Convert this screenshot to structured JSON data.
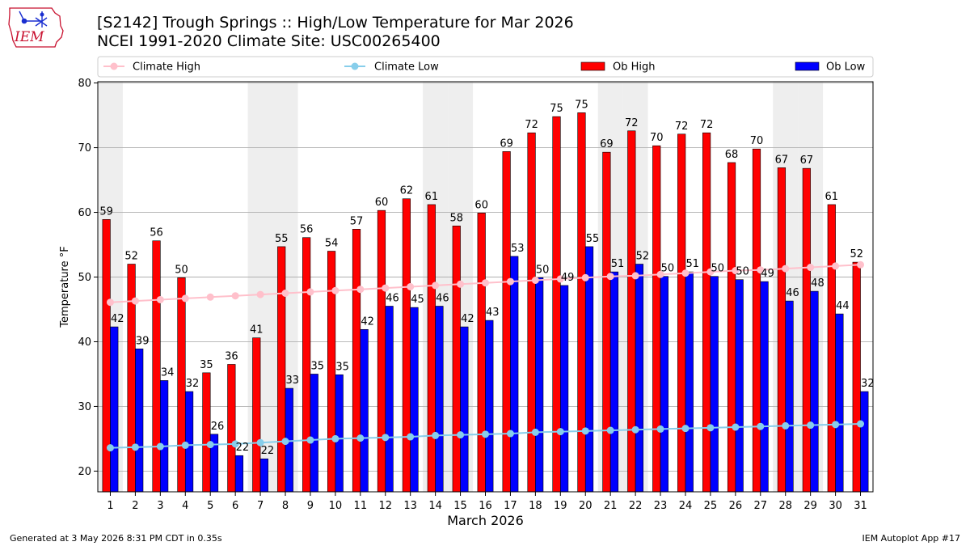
{
  "header": {
    "logo_text": "IEM",
    "title_line1": "[S2142] Trough Springs :: High/Low Temperature for Mar 2026",
    "title_line2": "NCEI 1991-2020 Climate Site: USC00265400"
  },
  "footer": {
    "left": "Generated at 3 May 2026 8:31 PM CDT in 0.35s",
    "right": "IEM Autoplot App #17"
  },
  "colors": {
    "ob_high": "#ff0000",
    "ob_low": "#0000ff",
    "climate_high": "#ffc0cb",
    "climate_low": "#87ceeb",
    "weekend_band": "#eeeeee",
    "grid": "#b0b0b0"
  },
  "chart_data": {
    "type": "bar",
    "xlabel": "March 2026",
    "ylabel": "Temperature °F",
    "ylim": [
      16.8,
      80.2
    ],
    "yticks": [
      20,
      30,
      40,
      50,
      60,
      70,
      80
    ],
    "grid": "horizontal",
    "legend_position": "top",
    "categories": [
      "1",
      "2",
      "3",
      "4",
      "5",
      "6",
      "7",
      "8",
      "9",
      "10",
      "11",
      "12",
      "13",
      "14",
      "15",
      "16",
      "17",
      "18",
      "19",
      "20",
      "21",
      "22",
      "23",
      "24",
      "25",
      "26",
      "27",
      "28",
      "29",
      "30",
      "31"
    ],
    "shaded_days": [
      1,
      7,
      8,
      14,
      15,
      21,
      22,
      28,
      29
    ],
    "series": [
      {
        "name": "Ob High",
        "kind": "bar",
        "values": [
          59,
          52,
          56,
          50,
          35,
          36,
          41,
          55,
          56,
          54,
          57,
          60,
          62,
          61,
          58,
          60,
          69,
          72,
          75,
          75,
          69,
          72,
          70,
          72,
          72,
          68,
          70,
          67,
          67,
          61,
          52
        ],
        "plot_values": [
          58.9,
          52.0,
          55.6,
          49.9,
          35.2,
          36.5,
          40.6,
          54.7,
          56.1,
          54.0,
          57.4,
          60.3,
          62.1,
          61.2,
          57.9,
          59.9,
          69.4,
          72.3,
          74.8,
          75.4,
          69.3,
          72.6,
          70.3,
          72.1,
          72.3,
          67.7,
          69.8,
          66.9,
          66.8,
          61.2,
          52.3
        ]
      },
      {
        "name": "Ob Low",
        "kind": "bar",
        "values": [
          42,
          39,
          34,
          32,
          26,
          22,
          22,
          33,
          35,
          35,
          42,
          46,
          45,
          46,
          42,
          43,
          53,
          50,
          49,
          55,
          51,
          52,
          50,
          51,
          50,
          50,
          49,
          46,
          48,
          44,
          32
        ],
        "plot_values": [
          42.3,
          38.9,
          34.0,
          32.3,
          25.7,
          22.4,
          21.9,
          32.8,
          35.0,
          34.9,
          41.9,
          45.5,
          45.3,
          45.5,
          42.3,
          43.3,
          53.2,
          49.9,
          48.7,
          54.7,
          50.8,
          52.0,
          50.1,
          50.8,
          50.1,
          49.6,
          49.3,
          46.3,
          47.8,
          44.3,
          32.3
        ]
      },
      {
        "name": "Climate High",
        "kind": "line",
        "values": [
          46.1,
          46.3,
          46.5,
          46.7,
          46.9,
          47.1,
          47.3,
          47.5,
          47.7,
          47.9,
          48.1,
          48.3,
          48.5,
          48.7,
          48.9,
          49.1,
          49.3,
          49.5,
          49.7,
          49.9,
          50.1,
          50.2,
          50.4,
          50.6,
          50.8,
          51.0,
          51.1,
          51.3,
          51.5,
          51.7,
          51.9
        ]
      },
      {
        "name": "Climate Low",
        "kind": "line",
        "values": [
          23.6,
          23.7,
          23.8,
          24.0,
          24.1,
          24.2,
          24.4,
          24.6,
          24.8,
          25.0,
          25.1,
          25.2,
          25.3,
          25.5,
          25.6,
          25.7,
          25.8,
          26.0,
          26.1,
          26.2,
          26.3,
          26.4,
          26.5,
          26.6,
          26.7,
          26.8,
          26.9,
          27.0,
          27.1,
          27.2,
          27.3
        ]
      }
    ]
  }
}
